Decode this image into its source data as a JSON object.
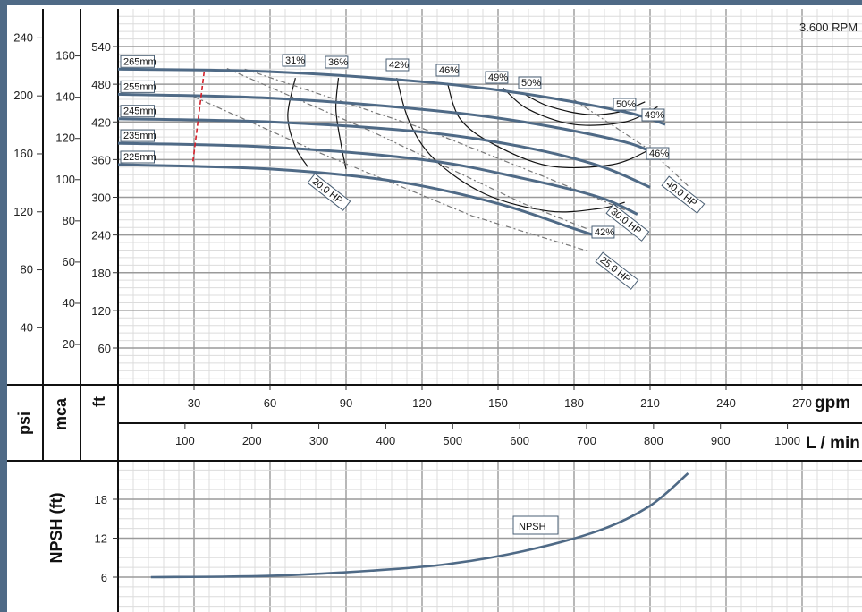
{
  "chart_data": {
    "type": "line",
    "speed_label": "3.600 RPM",
    "units": {
      "psi": "psi",
      "mca": "mca",
      "ft": "ft",
      "gpm": "gpm",
      "lmin": "L / min",
      "npsh": "NPSH (ft)"
    },
    "gpm_ticks": [
      "30",
      "60",
      "90",
      "120",
      "150",
      "180",
      "210",
      "240",
      "270"
    ],
    "lmin_ticks": [
      "100",
      "200",
      "300",
      "400",
      "500",
      "600",
      "700",
      "800",
      "900",
      "1000"
    ],
    "ft_ticks": [
      "60",
      "120",
      "180",
      "240",
      "300",
      "360",
      "420",
      "480",
      "540"
    ],
    "mca_ticks": [
      "20",
      "40",
      "60",
      "80",
      "100",
      "120",
      "140",
      "160"
    ],
    "psi_ticks": [
      "40",
      "80",
      "120",
      "160",
      "200",
      "240"
    ],
    "npsh_ticks": [
      "6",
      "12",
      "18"
    ],
    "xlim_gpm": [
      0,
      290
    ],
    "ylim_ft": [
      0,
      600
    ],
    "ylim_npsh": [
      0,
      23
    ],
    "impellers": [
      {
        "label": "265mm",
        "points": [
          [
            0,
            504
          ],
          [
            60,
            500
          ],
          [
            120,
            484
          ],
          [
            160,
            465
          ],
          [
            200,
            436
          ],
          [
            216,
            416
          ]
        ]
      },
      {
        "label": "255mm",
        "points": [
          [
            0,
            464
          ],
          [
            60,
            458
          ],
          [
            120,
            440
          ],
          [
            160,
            420
          ],
          [
            200,
            388
          ],
          [
            215,
            362
          ]
        ]
      },
      {
        "label": "245mm",
        "points": [
          [
            0,
            425
          ],
          [
            60,
            420
          ],
          [
            120,
            404
          ],
          [
            160,
            380
          ],
          [
            190,
            350
          ],
          [
            210,
            316
          ]
        ]
      },
      {
        "label": "235mm",
        "points": [
          [
            0,
            386
          ],
          [
            60,
            380
          ],
          [
            120,
            360
          ],
          [
            160,
            330
          ],
          [
            190,
            300
          ],
          [
            205,
            273
          ]
        ]
      },
      {
        "label": "225mm",
        "points": [
          [
            0,
            352
          ],
          [
            60,
            345
          ],
          [
            110,
            325
          ],
          [
            150,
            290
          ],
          [
            180,
            250
          ],
          [
            190,
            237
          ]
        ]
      }
    ],
    "efficiency_labels": [
      "31%",
      "36%",
      "42%",
      "46%",
      "49%",
      "50%",
      "50%",
      "49%",
      "46%",
      "42%"
    ],
    "power_labels": [
      "20.0 HP",
      "30.0 HP",
      "25.0 HP",
      "40.0 HP"
    ],
    "npsh": {
      "label": "NPSH",
      "points": [
        [
          13,
          6
        ],
        [
          60,
          6.2
        ],
        [
          100,
          7
        ],
        [
          130,
          8
        ],
        [
          160,
          10
        ],
        [
          190,
          13.2
        ],
        [
          210,
          17
        ],
        [
          225,
          22
        ]
      ]
    }
  }
}
